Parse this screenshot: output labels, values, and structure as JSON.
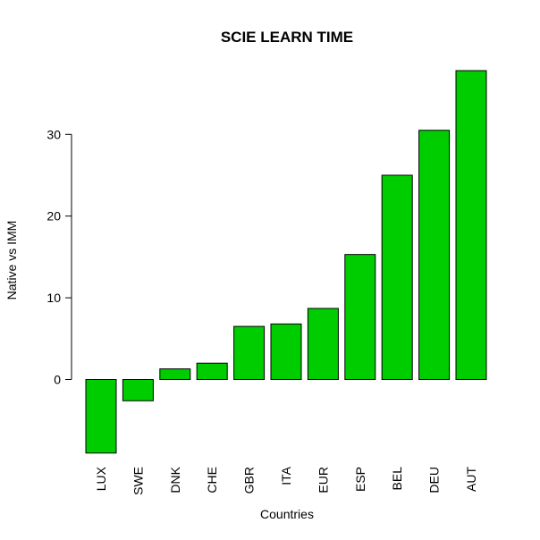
{
  "chart_data": {
    "type": "bar",
    "title": "SCIE LEARN TIME",
    "xlabel": "Countries",
    "ylabel": "Native vs IMM",
    "categories": [
      "LUX",
      "SWE",
      "DNK",
      "CHE",
      "GBR",
      "ITA",
      "EUR",
      "ESP",
      "BEL",
      "DEU",
      "AUT"
    ],
    "values": [
      -9.0,
      -2.6,
      1.3,
      2.0,
      6.5,
      6.8,
      8.7,
      15.3,
      25.0,
      30.5,
      37.8
    ],
    "y_ticks": [
      0,
      10,
      20,
      30
    ],
    "ylim": [
      -9.0,
      37.8
    ],
    "bar_color": "#00CD00",
    "bar_border_color": "#000000",
    "grid": false,
    "legend": "none"
  }
}
